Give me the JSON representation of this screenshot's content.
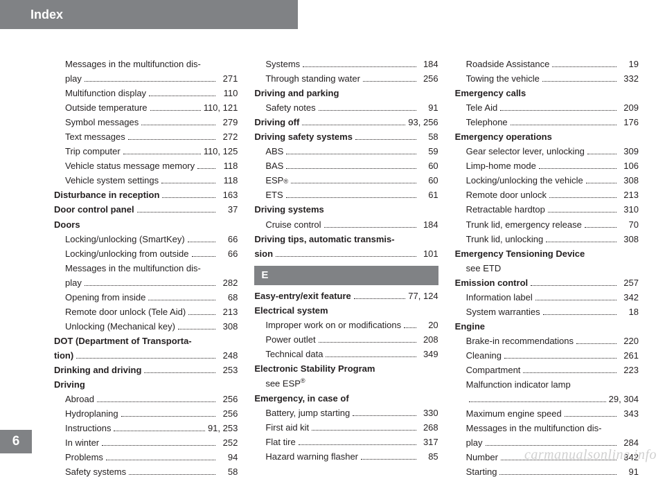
{
  "header": {
    "title": "Index"
  },
  "page_number": "6",
  "watermark": "carmanualsonline.info",
  "letter_e": "E",
  "columns": [
    [
      {
        "type": "sub",
        "label": "Messages in the multifunction dis-",
        "cont": true
      },
      {
        "type": "sub",
        "label": "play",
        "page": "271"
      },
      {
        "type": "sub",
        "label": "Multifunction display",
        "page": "110"
      },
      {
        "type": "sub",
        "label": "Outside temperature",
        "page": "110, 121"
      },
      {
        "type": "sub",
        "label": "Symbol messages",
        "page": "279"
      },
      {
        "type": "sub",
        "label": "Text messages",
        "page": "272"
      },
      {
        "type": "sub",
        "label": "Trip computer",
        "page": "110, 125"
      },
      {
        "type": "sub",
        "label": "Vehicle status message memory",
        "page": "118"
      },
      {
        "type": "sub",
        "label": "Vehicle system settings",
        "page": "118"
      },
      {
        "type": "main",
        "label": "Disturbance in reception",
        "page": "163"
      },
      {
        "type": "main",
        "label": "Door control panel",
        "page": "37"
      },
      {
        "type": "main",
        "label": "Doors",
        "nopage": true
      },
      {
        "type": "sub",
        "label": "Locking/unlocking (SmartKey)",
        "page": "66"
      },
      {
        "type": "sub",
        "label": "Locking/unlocking from outside",
        "page": "66"
      },
      {
        "type": "sub",
        "label": "Messages in the multifunction dis-",
        "cont": true
      },
      {
        "type": "sub",
        "label": "play",
        "page": "282"
      },
      {
        "type": "sub",
        "label": "Opening from inside",
        "page": "68"
      },
      {
        "type": "sub",
        "label": "Remote door unlock (Tele Aid)",
        "page": "213"
      },
      {
        "type": "sub",
        "label": "Unlocking (Mechanical key)",
        "page": "308"
      },
      {
        "type": "main",
        "label": "DOT (Department of Transporta-",
        "cont": true
      },
      {
        "type": "main-cont",
        "label": "tion)",
        "page": "248"
      },
      {
        "type": "main",
        "label": "Drinking and driving",
        "page": "253"
      },
      {
        "type": "main",
        "label": "Driving",
        "nopage": true
      },
      {
        "type": "sub",
        "label": "Abroad",
        "page": "256"
      },
      {
        "type": "sub",
        "label": "Hydroplaning",
        "page": "256"
      },
      {
        "type": "sub",
        "label": "Instructions",
        "page": "91, 253"
      },
      {
        "type": "sub",
        "label": "In winter",
        "page": "252"
      },
      {
        "type": "sub",
        "label": "Problems",
        "page": "94"
      },
      {
        "type": "sub",
        "label": "Safety systems",
        "page": "58"
      }
    ],
    [
      {
        "type": "sub",
        "label": "Systems",
        "page": "184"
      },
      {
        "type": "sub",
        "label": "Through standing water",
        "page": "256"
      },
      {
        "type": "main",
        "label": "Driving and parking",
        "nopage": true
      },
      {
        "type": "sub",
        "label": "Safety notes",
        "page": "91"
      },
      {
        "type": "main",
        "label": "Driving off",
        "page": "93, 256"
      },
      {
        "type": "main",
        "label": "Driving safety systems",
        "page": "58"
      },
      {
        "type": "sub",
        "label": "ABS",
        "page": "59"
      },
      {
        "type": "sub",
        "label": "BAS",
        "page": "60"
      },
      {
        "type": "sub",
        "label": "ESP",
        "sup": "®",
        "page": "60"
      },
      {
        "type": "sub",
        "label": "ETS",
        "page": "61"
      },
      {
        "type": "main",
        "label": "Driving systems",
        "nopage": true
      },
      {
        "type": "sub",
        "label": "Cruise control",
        "page": "184"
      },
      {
        "type": "main",
        "label": "Driving tips, automatic transmis-",
        "cont": true
      },
      {
        "type": "main-cont",
        "label": "sion",
        "page": "101"
      },
      {
        "type": "letter",
        "key": "letter_e"
      },
      {
        "type": "main",
        "label": "Easy-entry/exit feature",
        "page": "77, 124"
      },
      {
        "type": "main",
        "label": "Electrical system",
        "nopage": true
      },
      {
        "type": "sub",
        "label": "Improper work on or modifications",
        "page": "20"
      },
      {
        "type": "sub",
        "label": "Power outlet",
        "page": "208"
      },
      {
        "type": "sub",
        "label": "Technical data",
        "page": "349"
      },
      {
        "type": "main",
        "label": "Electronic Stability Program",
        "nopage": true
      },
      {
        "type": "see",
        "label": "see ESP",
        "sup": "®"
      },
      {
        "type": "main",
        "label": "Emergency, in case of",
        "nopage": true
      },
      {
        "type": "sub",
        "label": "Battery, jump starting",
        "page": "330"
      },
      {
        "type": "sub",
        "label": "First aid kit",
        "page": "268"
      },
      {
        "type": "sub",
        "label": "Flat tire",
        "page": "317"
      },
      {
        "type": "sub",
        "label": "Hazard warning flasher",
        "page": "85"
      }
    ],
    [
      {
        "type": "sub",
        "label": "Roadside Assistance",
        "page": "19"
      },
      {
        "type": "sub",
        "label": "Towing the vehicle",
        "page": "332"
      },
      {
        "type": "main",
        "label": "Emergency calls",
        "nopage": true
      },
      {
        "type": "sub",
        "label": "Tele Aid",
        "page": "209"
      },
      {
        "type": "sub",
        "label": "Telephone",
        "page": "176"
      },
      {
        "type": "main",
        "label": "Emergency operations",
        "nopage": true
      },
      {
        "type": "sub",
        "label": "Gear selector lever, unlocking",
        "page": "309"
      },
      {
        "type": "sub",
        "label": "Limp-home mode",
        "page": "106"
      },
      {
        "type": "sub",
        "label": "Locking/unlocking the vehicle",
        "page": "308"
      },
      {
        "type": "sub",
        "label": "Remote door unlock",
        "page": "213"
      },
      {
        "type": "sub",
        "label": "Retractable hardtop",
        "page": "310"
      },
      {
        "type": "sub",
        "label": "Trunk lid, emergency release",
        "page": "70"
      },
      {
        "type": "sub",
        "label": "Trunk lid, unlocking",
        "page": "308"
      },
      {
        "type": "main",
        "label": "Emergency Tensioning Device",
        "nopage": true
      },
      {
        "type": "see",
        "label": "see ETD"
      },
      {
        "type": "main",
        "label": "Emission control",
        "page": "257"
      },
      {
        "type": "sub",
        "label": "Information label",
        "page": "342"
      },
      {
        "type": "sub",
        "label": "System warranties",
        "page": "18"
      },
      {
        "type": "main",
        "label": "Engine",
        "nopage": true
      },
      {
        "type": "sub",
        "label": "Brake-in recommendations",
        "page": "220"
      },
      {
        "type": "sub",
        "label": "Cleaning",
        "page": "261"
      },
      {
        "type": "sub",
        "label": "Compartment",
        "page": "223"
      },
      {
        "type": "sub",
        "label": "Malfunction indicator lamp",
        "cont": true
      },
      {
        "type": "sub",
        "label": " ",
        "page": "29, 304"
      },
      {
        "type": "sub",
        "label": "Maximum engine speed",
        "page": "343"
      },
      {
        "type": "sub",
        "label": "Messages in the multifunction dis-",
        "cont": true
      },
      {
        "type": "sub",
        "label": "play",
        "page": "284"
      },
      {
        "type": "sub",
        "label": "Number",
        "page": "342"
      },
      {
        "type": "sub",
        "label": "Starting",
        "page": "91"
      }
    ]
  ]
}
